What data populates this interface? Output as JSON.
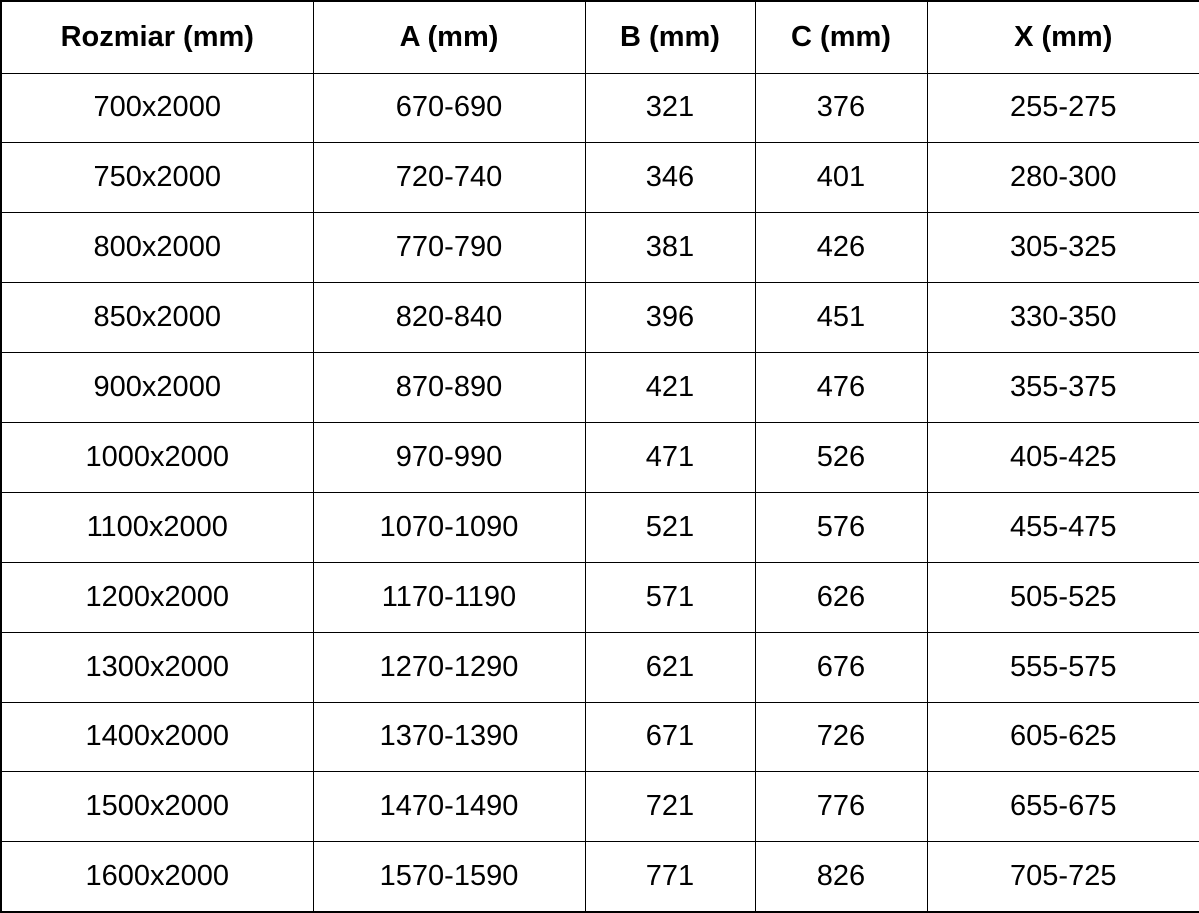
{
  "table": {
    "headers": [
      "Rozmiar (mm)",
      "A (mm)",
      "B (mm)",
      "C (mm)",
      "X (mm)"
    ],
    "rows": [
      [
        "700x2000",
        "670-690",
        "321",
        "376",
        "255-275"
      ],
      [
        "750x2000",
        "720-740",
        "346",
        "401",
        "280-300"
      ],
      [
        "800x2000",
        "770-790",
        "381",
        "426",
        "305-325"
      ],
      [
        "850x2000",
        "820-840",
        "396",
        "451",
        "330-350"
      ],
      [
        "900x2000",
        "870-890",
        "421",
        "476",
        "355-375"
      ],
      [
        "1000x2000",
        "970-990",
        "471",
        "526",
        "405-425"
      ],
      [
        "1100x2000",
        "1070-1090",
        "521",
        "576",
        "455-475"
      ],
      [
        "1200x2000",
        "1170-1190",
        "571",
        "626",
        "505-525"
      ],
      [
        "1300x2000",
        "1270-1290",
        "621",
        "676",
        "555-575"
      ],
      [
        "1400x2000",
        "1370-1390",
        "671",
        "726",
        "605-625"
      ],
      [
        "1500x2000",
        "1470-1490",
        "721",
        "776",
        "655-675"
      ],
      [
        "1600x2000",
        "1570-1590",
        "771",
        "826",
        "705-725"
      ]
    ]
  },
  "colors": {
    "border": "#000000",
    "text": "#000000",
    "background": "#ffffff"
  }
}
